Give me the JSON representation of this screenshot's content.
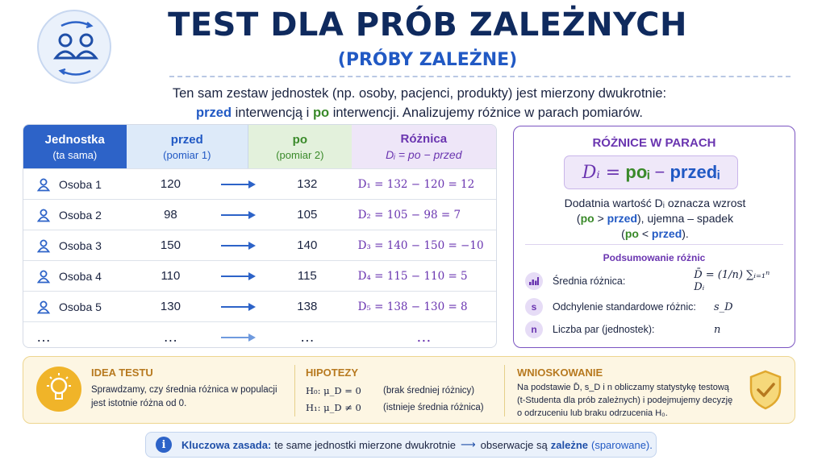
{
  "header": {
    "title": "TEST DLA PRÓB ZALEŻNYCH",
    "subtitle": "(PRÓBY ZALEŻNE)"
  },
  "intro": {
    "line1": "Ten sam zestaw jednostek (np. osoby, pacjenci, produkty) jest mierzony dwukrotnie:",
    "przed": "przed",
    "mid": " interwencją i ",
    "po": "po",
    "end": " interwencji. Analizujemy różnice w parach pomiarów."
  },
  "table": {
    "headers": [
      {
        "title": "Jednostka",
        "sub": "(ta sama)"
      },
      {
        "title": "przed",
        "sub": "(pomiar 1)"
      },
      {
        "title": "po",
        "sub": "(pomiar 2)"
      },
      {
        "title": "Różnica",
        "sub": "Dᵢ = po − przed"
      }
    ],
    "rows": [
      {
        "unit": "Osoba 1",
        "before": "120",
        "after": "132",
        "diff": "D₁ = 132 − 120 = 12"
      },
      {
        "unit": "Osoba 2",
        "before": "98",
        "after": "105",
        "diff": "D₂ = 105 − 98 = 7"
      },
      {
        "unit": "Osoba 3",
        "before": "150",
        "after": "140",
        "diff": "D₃ = 140 − 150 = −10"
      },
      {
        "unit": "Osoba 4",
        "before": "110",
        "after": "115",
        "diff": "D₄ = 115 − 110 = 5"
      },
      {
        "unit": "Osoba 5",
        "before": "130",
        "after": "138",
        "diff": "D₅ = 138 − 130 = 8"
      }
    ],
    "ellipsis": "…"
  },
  "panel": {
    "title": "RÓŻNICE W PARACH",
    "formula_lhs": "Dᵢ =",
    "formula_po": "poᵢ",
    "formula_minus": "−",
    "formula_przed": "przedᵢ",
    "desc1": "Dodatnia wartość Dᵢ oznacza wzrost",
    "desc2_a": "(",
    "desc2_po": "po",
    "desc2_b": " > ",
    "desc2_przed": "przed",
    "desc2_c": "), ujemna – spadek",
    "desc3_a": "(",
    "desc3_po": "po",
    "desc3_b": " < ",
    "desc3_przed": "przed",
    "desc3_c": ").",
    "summary_title": "Podsumowanie różnic",
    "summary": [
      {
        "icon": "bar-chart-icon",
        "label": "Średnia różnica:",
        "value": "D̄ = (1/n) ∑ᵢ₌₁ⁿ Dᵢ"
      },
      {
        "icon": "s",
        "label": "Odchylenie standardowe różnic:",
        "value": "s_D"
      },
      {
        "icon": "n",
        "label": "Liczba par (jednostek):",
        "value": "n"
      }
    ]
  },
  "bottom": {
    "idea_title": "IDEA TESTU",
    "idea_text": "Sprawdzamy, czy średnia różnica w populacji jest istotnie różna od 0.",
    "hyp_title": "HIPOTEZY",
    "h0": "H₀: μ_D = 0",
    "h0_note": "(brak średniej różnicy)",
    "h1": "H₁: μ_D ≠ 0",
    "h1_note": "(istnieje średnia różnica)",
    "inf_title": "WNIOSKOWANIE",
    "inf_text": "Na podstawie D̄, s_D i n obliczamy statystykę testową (t-Studenta dla prób zależnych) i podejmujemy decyzję o odrzuceniu lub braku odrzucenia H₀."
  },
  "key": {
    "label": "Kluczowa zasada:",
    "text": "te same jednostki mierzone dwukrotnie",
    "arrow": "⟶",
    "text2": "obserwacje są",
    "em": "zależne",
    "em2": "(sparowane)."
  },
  "colors": {
    "navy": "#0f2a5e",
    "blue": "#2159c4",
    "green": "#3a8a2a",
    "purple": "#6a35b0",
    "amber": "#b7791f"
  }
}
